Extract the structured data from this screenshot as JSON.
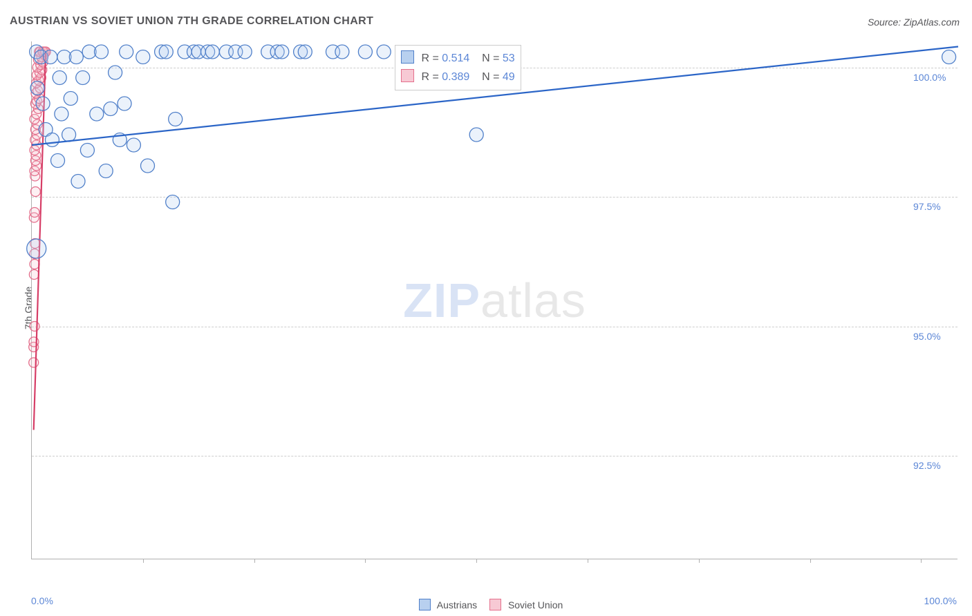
{
  "title": "AUSTRIAN VS SOVIET UNION 7TH GRADE CORRELATION CHART",
  "source": "Source: ZipAtlas.com",
  "ylabel": "7th Grade",
  "watermark": {
    "part1": "ZIP",
    "part2": "atlas"
  },
  "chart": {
    "type": "scatter",
    "background_color": "#ffffff",
    "grid_color": "#cccccc",
    "axis_color": "#b0b0b0",
    "text_color": "#555558",
    "value_color": "#5b86d6",
    "xlim": [
      0,
      100
    ],
    "ylim": [
      90.5,
      100.5
    ],
    "xtick_positions": [
      0,
      12,
      24,
      36,
      48,
      60,
      72,
      84,
      96,
      100
    ],
    "xtick_labels": {
      "0": "0.0%",
      "100": "100.0%"
    },
    "ytick_positions": [
      92.5,
      95.0,
      97.5,
      100.0
    ],
    "ytick_labels": [
      "92.5%",
      "95.0%",
      "97.5%",
      "100.0%"
    ],
    "marker_radius": 10,
    "marker_radius_small": 7,
    "marker_stroke_width": 1.3,
    "marker_fill_opacity": 0.28,
    "regression_line_width": 2.2
  },
  "series": {
    "austrians": {
      "label": "Austrians",
      "fill": "#b8d0ef",
      "stroke": "#4f7fc9",
      "correlation_R": "0.514",
      "N": "53",
      "regression": {
        "x1": 0,
        "y1": 98.5,
        "x2": 100,
        "y2": 100.4,
        "color": "#2b65c7"
      },
      "points": [
        [
          0.5,
          96.5,
          14
        ],
        [
          0.5,
          100.3
        ],
        [
          0.6,
          99.6
        ],
        [
          1.0,
          100.2
        ],
        [
          1.2,
          99.3
        ],
        [
          1.5,
          98.8
        ],
        [
          2.0,
          100.2
        ],
        [
          2.2,
          98.6
        ],
        [
          2.8,
          98.2
        ],
        [
          3.0,
          99.8
        ],
        [
          3.2,
          99.1
        ],
        [
          3.5,
          100.2
        ],
        [
          4.0,
          98.7
        ],
        [
          4.2,
          99.4
        ],
        [
          4.8,
          100.2
        ],
        [
          5.0,
          97.8
        ],
        [
          5.5,
          99.8
        ],
        [
          6.0,
          98.4
        ],
        [
          6.2,
          100.3
        ],
        [
          7.0,
          99.1
        ],
        [
          7.5,
          100.3
        ],
        [
          8.0,
          98.0
        ],
        [
          8.5,
          99.2
        ],
        [
          9.0,
          99.9
        ],
        [
          9.5,
          98.6
        ],
        [
          10.0,
          99.3
        ],
        [
          10.2,
          100.3
        ],
        [
          11.0,
          98.5
        ],
        [
          12.0,
          100.2
        ],
        [
          12.5,
          98.1
        ],
        [
          14.0,
          100.3
        ],
        [
          14.5,
          100.3
        ],
        [
          15.2,
          97.4
        ],
        [
          15.5,
          99.0
        ],
        [
          16.5,
          100.3
        ],
        [
          17.5,
          100.3
        ],
        [
          18.0,
          100.3
        ],
        [
          19.0,
          100.3
        ],
        [
          19.5,
          100.3
        ],
        [
          21.0,
          100.3
        ],
        [
          22.0,
          100.3
        ],
        [
          23.0,
          100.3
        ],
        [
          25.5,
          100.3
        ],
        [
          26.5,
          100.3
        ],
        [
          27.0,
          100.3
        ],
        [
          29.0,
          100.3
        ],
        [
          29.5,
          100.3
        ],
        [
          32.5,
          100.3
        ],
        [
          33.5,
          100.3
        ],
        [
          36.0,
          100.3
        ],
        [
          38.0,
          100.3
        ],
        [
          48.0,
          98.7
        ],
        [
          99.0,
          100.2
        ]
      ]
    },
    "soviet": {
      "label": "Soviet Union",
      "fill": "#f7c9d4",
      "stroke": "#e46f8c",
      "correlation_R": "0.389",
      "N": "49",
      "regression": {
        "x1": 0.2,
        "y1": 93.0,
        "x2": 1.5,
        "y2": 100.3,
        "color": "#d63d66"
      },
      "points": [
        [
          0.2,
          94.3,
          7
        ],
        [
          0.2,
          94.6,
          7
        ],
        [
          0.22,
          94.7,
          7
        ],
        [
          0.3,
          95.0,
          7
        ],
        [
          0.25,
          96.0,
          7
        ],
        [
          0.3,
          96.4,
          7
        ],
        [
          0.35,
          96.6,
          7
        ],
        [
          0.3,
          96.2,
          7
        ],
        [
          0.25,
          97.1,
          7
        ],
        [
          0.3,
          97.2,
          7
        ],
        [
          0.4,
          97.6,
          7
        ],
        [
          0.35,
          97.9,
          7
        ],
        [
          0.3,
          98.0,
          7
        ],
        [
          0.5,
          98.1,
          7
        ],
        [
          0.4,
          98.2,
          7
        ],
        [
          0.45,
          98.3,
          7
        ],
        [
          0.3,
          98.4,
          7
        ],
        [
          0.5,
          98.5,
          7
        ],
        [
          0.35,
          98.6,
          7
        ],
        [
          0.55,
          98.7,
          7
        ],
        [
          0.4,
          98.8,
          7
        ],
        [
          0.6,
          98.9,
          7
        ],
        [
          0.3,
          99.0,
          7
        ],
        [
          0.5,
          99.1,
          7
        ],
        [
          0.7,
          99.2,
          7
        ],
        [
          0.4,
          99.3,
          7
        ],
        [
          0.55,
          99.35,
          7
        ],
        [
          0.8,
          99.4,
          7
        ],
        [
          0.45,
          99.5,
          7
        ],
        [
          0.65,
          99.55,
          7
        ],
        [
          0.9,
          99.6,
          7
        ],
        [
          0.5,
          99.7,
          7
        ],
        [
          0.75,
          99.75,
          7
        ],
        [
          1.0,
          99.8,
          7
        ],
        [
          0.55,
          99.85,
          7
        ],
        [
          0.85,
          99.9,
          7
        ],
        [
          1.1,
          99.95,
          7
        ],
        [
          0.6,
          100.0,
          7
        ],
        [
          0.95,
          100.05,
          7
        ],
        [
          1.2,
          100.1,
          7
        ],
        [
          0.7,
          100.15,
          7
        ],
        [
          1.05,
          100.2,
          7
        ],
        [
          1.3,
          100.25,
          7
        ],
        [
          0.8,
          100.3,
          7
        ],
        [
          1.15,
          100.3,
          7
        ],
        [
          1.4,
          100.3,
          7
        ],
        [
          0.9,
          100.3,
          7
        ],
        [
          1.25,
          100.3,
          7
        ],
        [
          1.5,
          100.3,
          7
        ]
      ]
    }
  },
  "legend": {
    "items": [
      {
        "key": "austrians",
        "label": "Austrians"
      },
      {
        "key": "soviet",
        "label": "Soviet Union"
      }
    ]
  },
  "corr_box": {
    "R_label": "R =",
    "N_label": "N ="
  }
}
